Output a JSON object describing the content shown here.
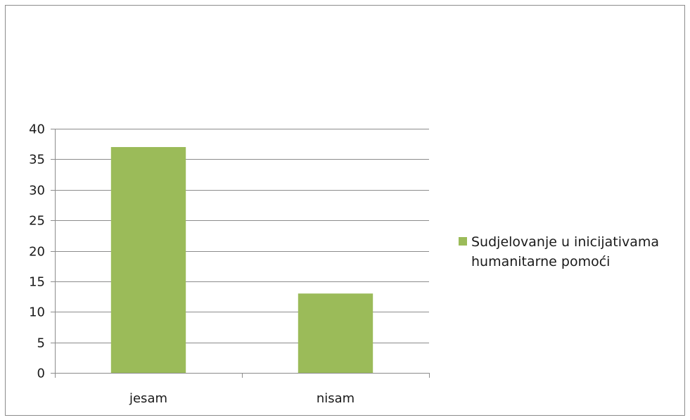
{
  "chart_data": {
    "type": "bar",
    "categories": [
      "jesam",
      "nisam"
    ],
    "series": [
      {
        "name": "Sudjelovanje u inicijativama humanitarne pomoći",
        "values": [
          37,
          13
        ],
        "color": "#9bbb59"
      }
    ],
    "title": "",
    "xlabel": "",
    "ylabel": "",
    "ylim": [
      0,
      40
    ],
    "yticks": [
      "0",
      "5",
      "10",
      "15",
      "20",
      "25",
      "30",
      "35",
      "40"
    ],
    "grid": true,
    "legend_position": "right"
  }
}
